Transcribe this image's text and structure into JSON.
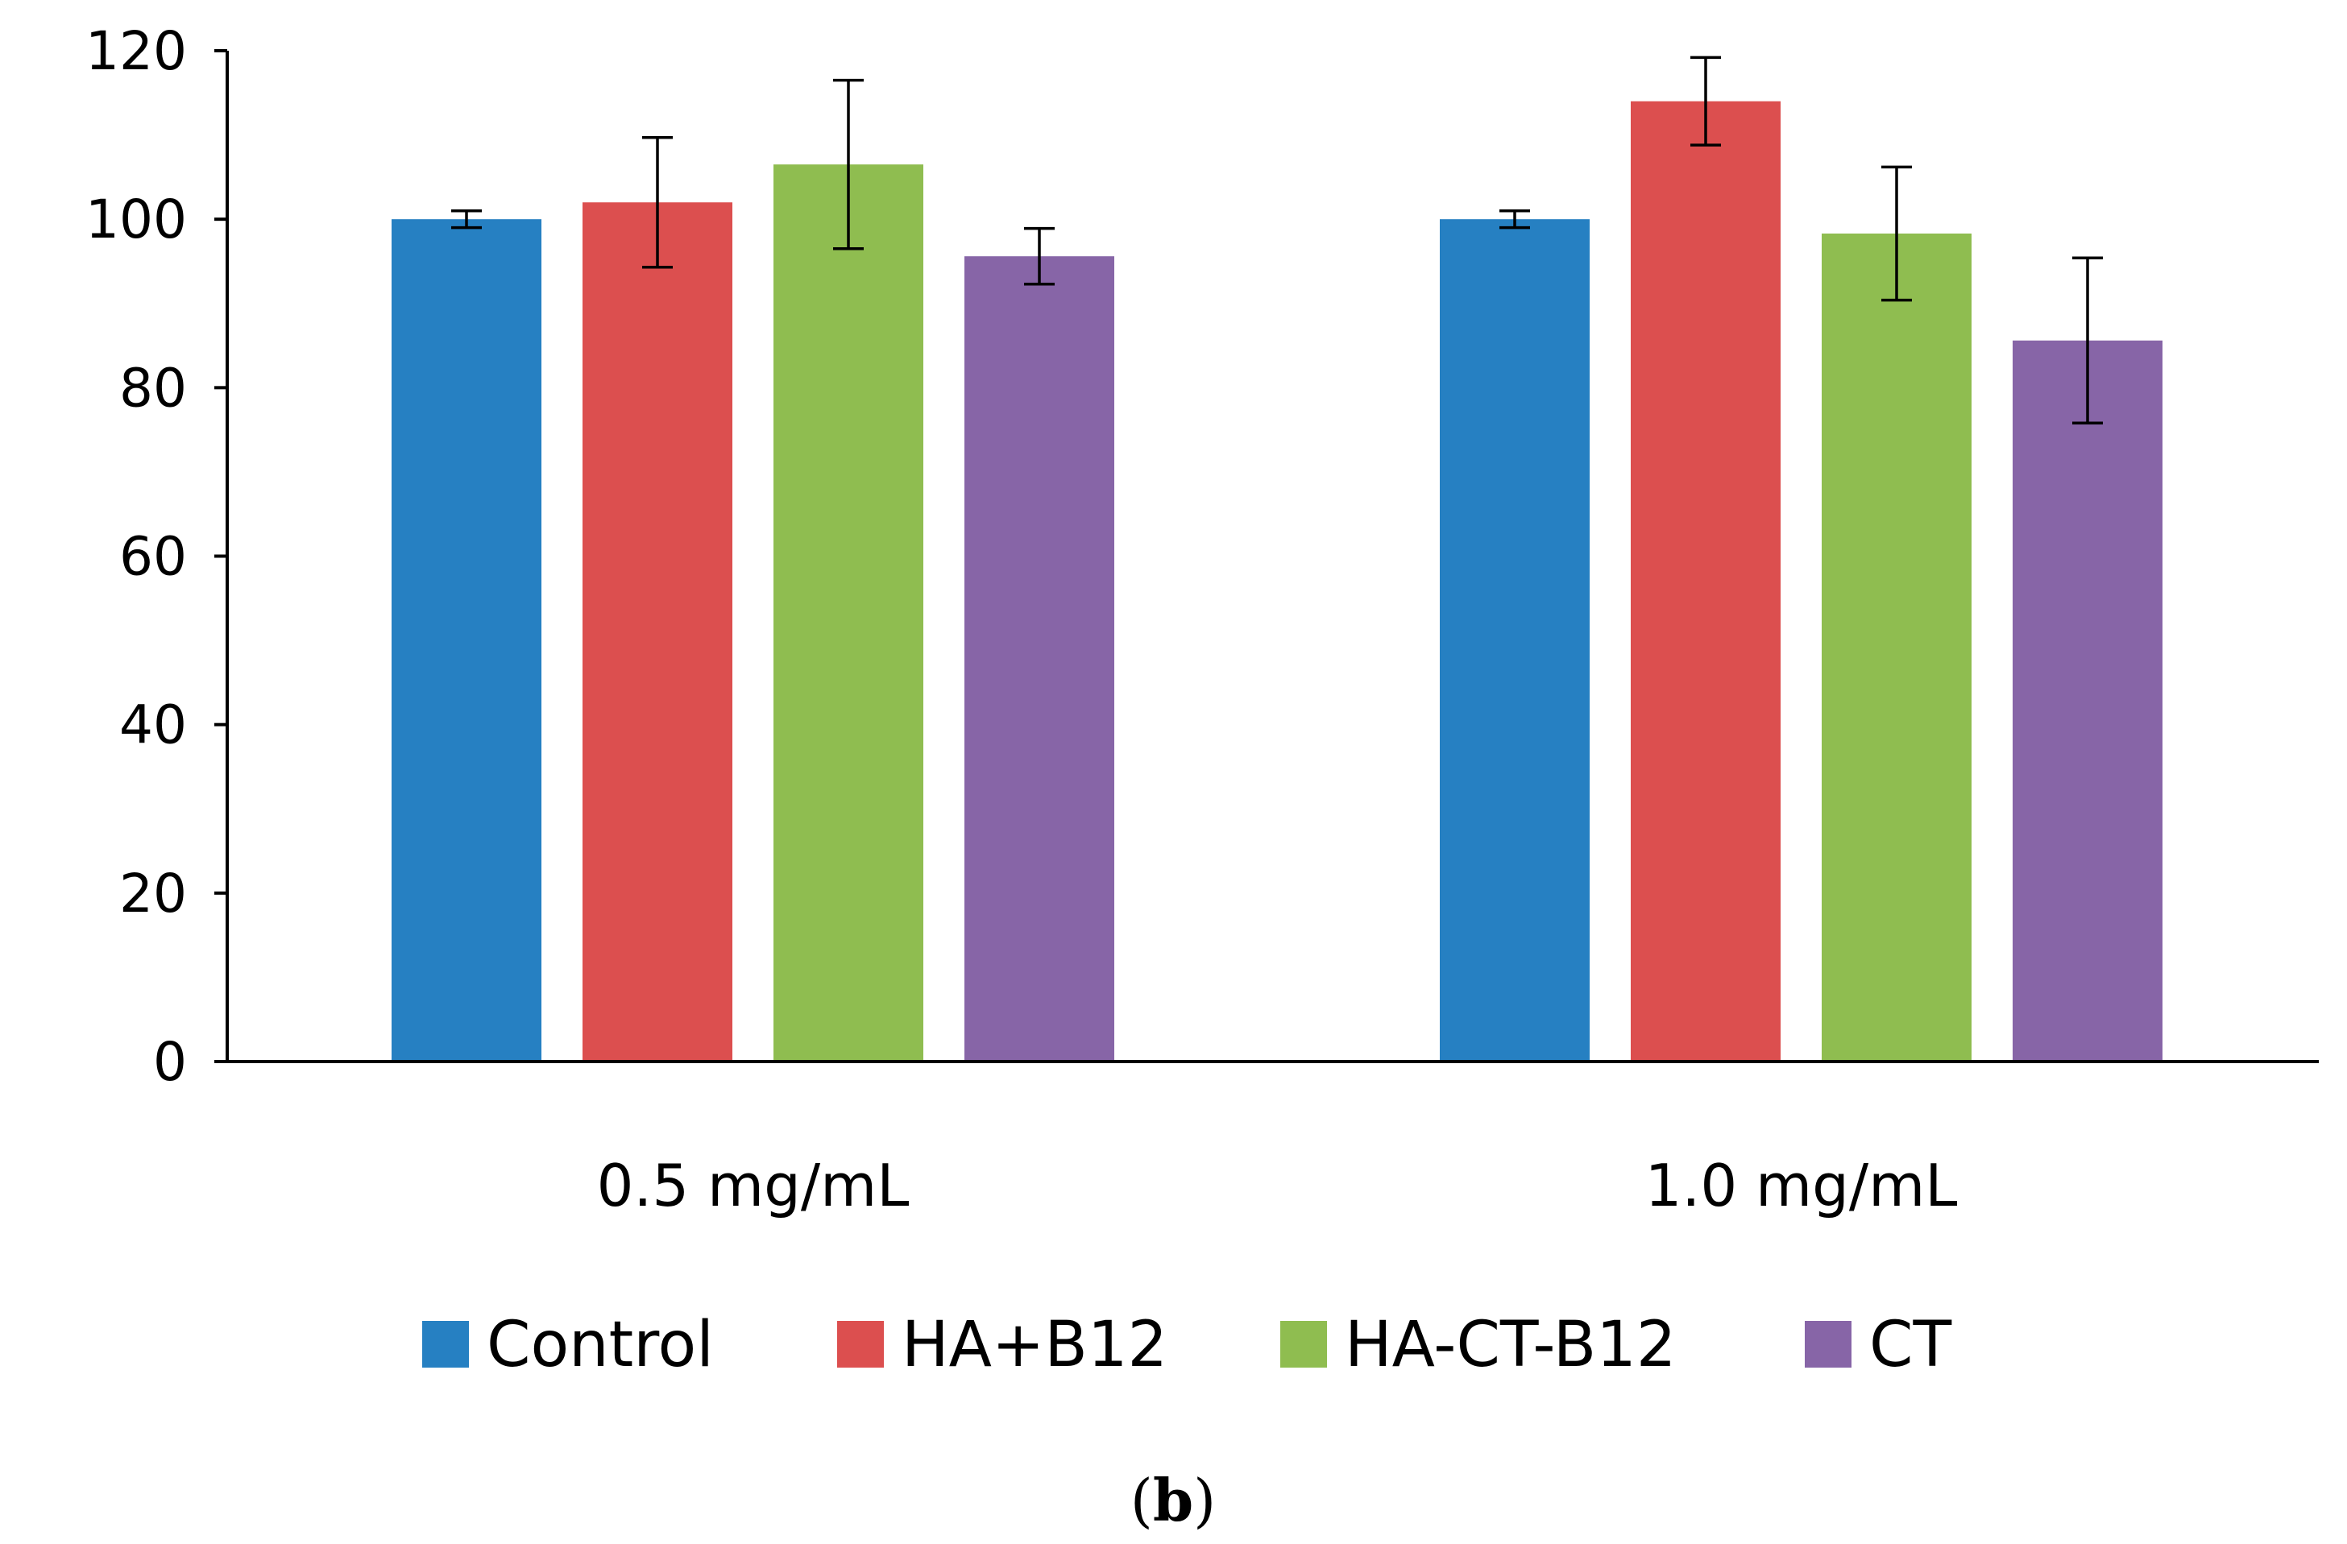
{
  "chart_data": {
    "type": "bar",
    "categories": [
      "0.5 mg/mL",
      "1.0 mg/mL"
    ],
    "series": [
      {
        "name": "Control",
        "color": "#2680C2",
        "values": [
          100,
          100
        ],
        "errors": [
          1,
          1
        ]
      },
      {
        "name": "HA+B12",
        "color": "#DC4F4F",
        "values": [
          102,
          114
        ],
        "errors": [
          7.7,
          5.2
        ]
      },
      {
        "name": "HA-CT-B12",
        "color": "#8FBD50",
        "values": [
          106.5,
          98.3
        ],
        "errors": [
          10,
          7.9
        ]
      },
      {
        "name": "CT",
        "color": "#8765A7",
        "values": [
          95.6,
          85.6
        ],
        "errors": [
          3.3,
          9.8
        ]
      }
    ],
    "ylim": [
      0,
      120
    ],
    "yticks": [
      0,
      20,
      40,
      60,
      80,
      100,
      120
    ],
    "title": "",
    "xlabel": "",
    "ylabel": "",
    "legend_position": "bottom",
    "grid": false
  },
  "caption": {
    "open": "(",
    "letter": "b",
    "close": ")"
  }
}
